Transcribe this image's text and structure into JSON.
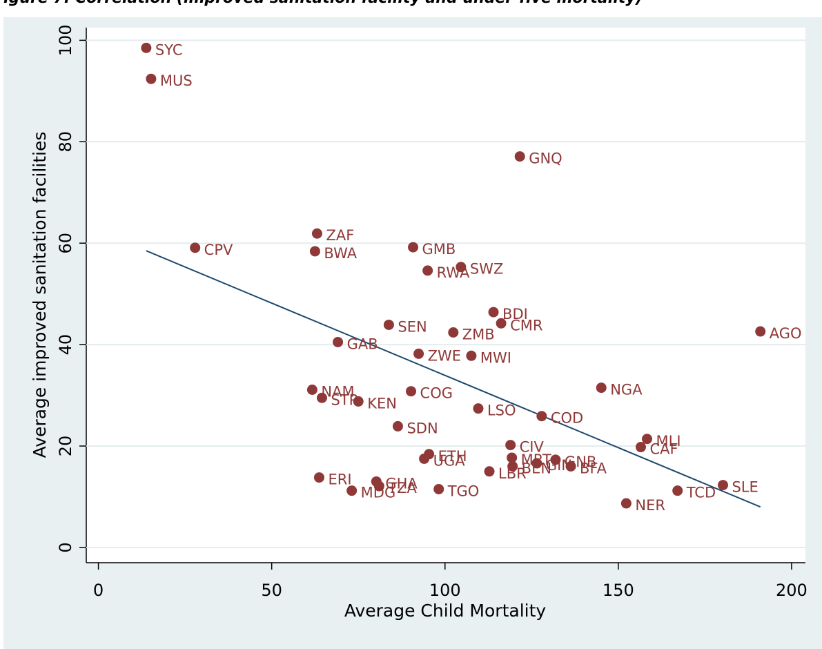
{
  "chart_data": {
    "type": "scatter",
    "title": "igure 7: Correlation (improved sanitation facility and under-five mortality)",
    "x_label": "Average Child Mortality",
    "y_label": "Average improved sanitation facilities",
    "xlim": [
      -3.5,
      204
    ],
    "ylim": [
      -3,
      102.5
    ],
    "xticks": [
      0,
      50,
      100,
      150,
      200
    ],
    "yticks": [
      0,
      20,
      40,
      60,
      80,
      100
    ],
    "grid": true,
    "color": "#8f3838",
    "labels": [
      "SYC",
      "MUS",
      "GNQ",
      "ZAF",
      "CPV",
      "BWA",
      "GMB",
      "SWZ",
      "RWA",
      "BDI",
      "CMR",
      "SEN",
      "ZMB",
      "AGO",
      "GAB",
      "ZWE",
      "MWI",
      "NGA",
      "NAM",
      "COG",
      "STP",
      "KEN",
      "LSO",
      "COD",
      "SDN",
      "MLI",
      "CIV",
      "CAF",
      "ETH",
      "UGA",
      "MRT",
      "GNB",
      "GIN",
      "BEN",
      "BFA",
      "LBR",
      "ERI",
      "GHA",
      "TZA",
      "SLE",
      "MDG",
      "TGO",
      "TCD",
      "NER"
    ],
    "x": [
      13.8,
      15.2,
      121.6,
      63.1,
      27.9,
      62.5,
      90.8,
      104.6,
      95.0,
      114.0,
      116.2,
      83.8,
      102.4,
      191.0,
      69.1,
      92.4,
      107.6,
      145.1,
      61.7,
      90.2,
      64.5,
      75.0,
      109.6,
      127.9,
      86.4,
      158.3,
      118.9,
      156.5,
      95.4,
      94.0,
      119.3,
      131.9,
      126.5,
      119.5,
      136.3,
      112.8,
      63.7,
      80.2,
      81.0,
      180.2,
      73.1,
      98.2,
      167.1,
      152.3
    ],
    "values": [
      98.5,
      92.4,
      77.1,
      61.9,
      59.1,
      58.4,
      59.2,
      55.3,
      54.6,
      46.4,
      44.2,
      43.9,
      42.4,
      42.6,
      40.5,
      38.2,
      37.8,
      31.5,
      31.1,
      30.8,
      29.5,
      28.8,
      27.4,
      25.9,
      23.9,
      21.4,
      20.2,
      19.8,
      18.4,
      17.5,
      17.7,
      17.3,
      16.6,
      16.0,
      16.0,
      15.0,
      13.8,
      13.0,
      12.1,
      12.3,
      11.2,
      11.5,
      11.2,
      8.7
    ],
    "fit_line": {
      "x": [
        13.8,
        191.0
      ],
      "y": [
        58.5,
        8.0
      ],
      "color": "#1f4a6e"
    }
  }
}
